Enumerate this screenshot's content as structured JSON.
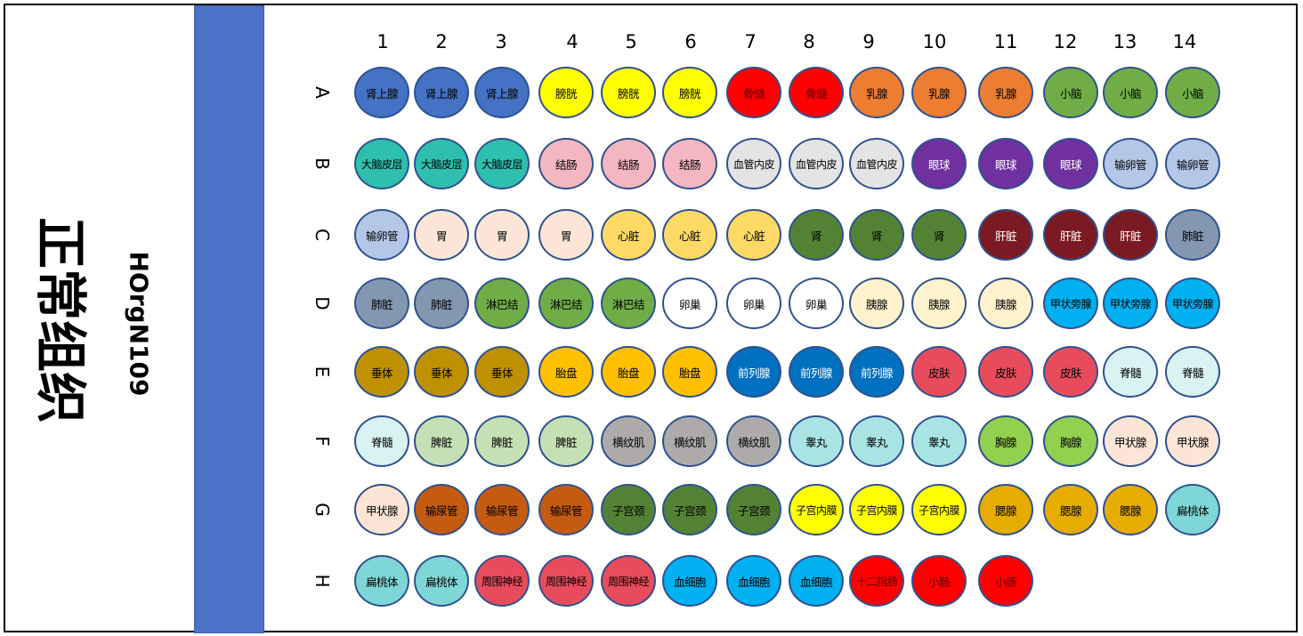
{
  "title": "正常组织",
  "subtitle": "HOrgN109",
  "columns": [
    "1",
    "2",
    "3",
    "4",
    "5",
    "6",
    "7",
    "8",
    "9",
    "10",
    "11",
    "12",
    "13",
    "14"
  ],
  "rows": [
    {
      "label": "A",
      "wells": [
        "肾上腺",
        "肾上腺",
        "肾上腺",
        "膀胱",
        "膀胱",
        "膀胱",
        "骨髓",
        "骨髓",
        "乳腺",
        "乳腺",
        "乳腺",
        "小脑",
        "小脑",
        "小脑"
      ]
    },
    {
      "label": "B",
      "wells": [
        "大脑皮层",
        "大脑皮层",
        "大脑皮层",
        "结肠",
        "结肠",
        "结肠",
        "血管内皮",
        "血管内皮",
        "血管内皮",
        "眼球",
        "眼球",
        "眼球",
        "输卵管",
        "输卵管"
      ]
    },
    {
      "label": "C",
      "wells": [
        "输卵管",
        "胃",
        "胃",
        "胃",
        "心脏",
        "心脏",
        "心脏",
        "肾",
        "肾",
        "肾",
        "肝脏",
        "肝脏",
        "肝脏",
        "肺脏"
      ]
    },
    {
      "label": "D",
      "wells": [
        "肺脏",
        "肺脏",
        "淋巴结",
        "淋巴结",
        "淋巴结",
        "卵巢",
        "卵巢",
        "卵巢",
        "胰腺",
        "胰腺",
        "胰腺",
        "甲状旁腺",
        "甲状旁腺",
        "甲状旁腺"
      ]
    },
    {
      "label": "E",
      "wells": [
        "垂体",
        "垂体",
        "垂体",
        "胎盘",
        "胎盘",
        "胎盘",
        "前列腺",
        "前列腺",
        "前列腺",
        "皮肤",
        "皮肤",
        "皮肤",
        "脊髓",
        "脊髓"
      ]
    },
    {
      "label": "F",
      "wells": [
        "脊髓",
        "脾脏",
        "脾脏",
        "脾脏",
        "横纹肌",
        "横纹肌",
        "横纹肌",
        "睾丸",
        "睾丸",
        "睾丸",
        "胸腺",
        "胸腺",
        "甲状腺",
        "甲状腺"
      ]
    },
    {
      "label": "G",
      "wells": [
        "甲状腺",
        "输尿管",
        "输尿管",
        "输尿管",
        "子宫颈",
        "子宫颈",
        "子宫颈",
        "子宫内膜",
        "子宫内膜",
        "子宫内膜",
        "腮腺",
        "腮腺",
        "腮腺",
        "扁桃体"
      ]
    },
    {
      "label": "H",
      "wells": [
        "扁桃体",
        "扁桃体",
        "周围神经",
        "周围神经",
        "周围神经",
        "血细胞",
        "血细胞",
        "血细胞",
        "十二指肠",
        "小肠",
        "小肠"
      ]
    }
  ],
  "tissue_colors": {
    "肾上腺": "#4472c4",
    "膀胱": "#ffff00",
    "骨髓": "#ff0000",
    "乳腺": "#ed7d31",
    "小脑": "#70ad47",
    "大脑皮层": "#2ebfae",
    "结肠": "#f4b6c0",
    "血管内皮": "#e4e4e4",
    "眼球": "#7030a0",
    "输卵管": "#b4c7e7",
    "胃": "#fbe5d6",
    "心脏": "#ffd966",
    "肾": "#548235",
    "肝脏": "#7b1a22",
    "肺脏": "#8497b0",
    "淋巴结": "#70ad47",
    "卵巢": "#ffffff",
    "胰腺": "#fff2cc",
    "甲状旁腺": "#00b0f0",
    "垂体": "#bf9000",
    "胎盘": "#ffc000",
    "前列腺": "#0070c0",
    "皮肤": "#e84c5c",
    "脊髓": "#d9f2f2",
    "脾脏": "#c5e0b4",
    "横纹肌": "#aeaaaa",
    "睾丸": "#a9e4e4",
    "胸腺": "#92d050",
    "甲状腺": "#fce4d6",
    "输尿管": "#c55a11",
    "子宫颈": "#548235",
    "子宫内膜": "#ffff00",
    "腮腺": "#e6ac00",
    "扁桃体": "#7fd6d6",
    "周围神经": "#e84c5c",
    "血细胞": "#00b0f0",
    "十二指肠": "#ff0000",
    "小肠": "#ff0000"
  },
  "white_text_tissues": [
    "骨髓",
    "眼球",
    "肝脏",
    "前列腺",
    "十二指肠",
    "小肠"
  ],
  "border_color": "#2f528f",
  "band_color": "#4a72c9"
}
